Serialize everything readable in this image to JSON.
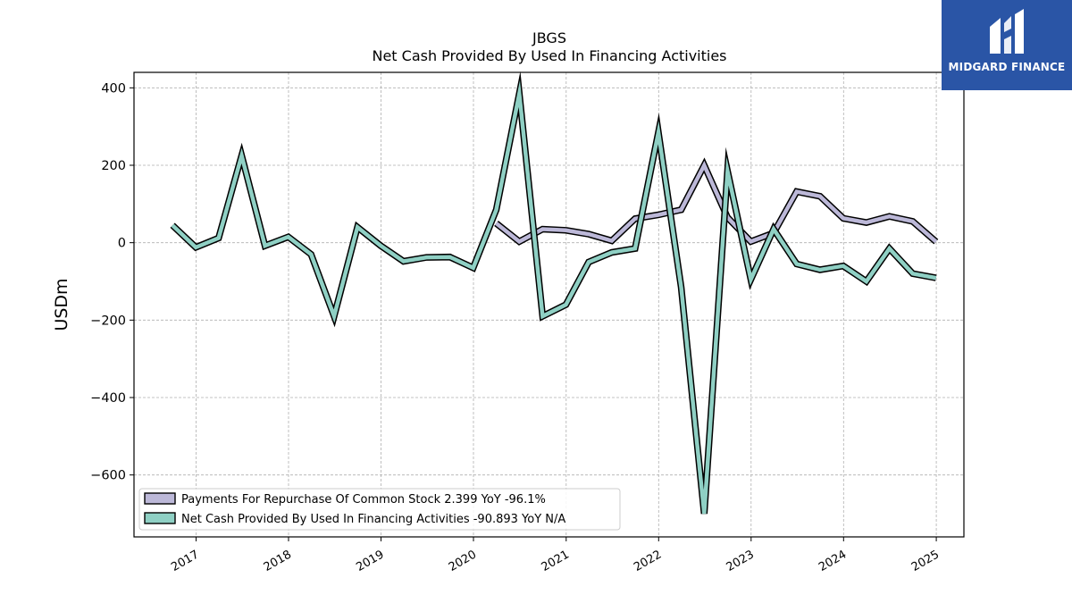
{
  "logo": {
    "text": "MIDGARD FINANCE",
    "color": "#2a55a6"
  },
  "chart_data": {
    "type": "line",
    "title": "JBGS",
    "subtitle": "Net Cash Provided By Used In Financing Activities",
    "xlabel": "",
    "ylabel": "USDm",
    "ylim": [
      -760,
      440
    ],
    "yticks": [
      400,
      200,
      0,
      -200,
      -400,
      -600
    ],
    "ytick_labels": [
      "400",
      "200",
      "0",
      "−200",
      "−400",
      "−600"
    ],
    "xlim": [
      "2016-05-01",
      "2025-04-20"
    ],
    "xticks": [
      "2017-01-01",
      "2018-01-01",
      "2019-01-01",
      "2020-01-01",
      "2021-01-01",
      "2022-01-01",
      "2023-01-01",
      "2024-01-01",
      "2025-01-01"
    ],
    "xtick_labels": [
      "2017",
      "2018",
      "2019",
      "2020",
      "2021",
      "2022",
      "2023",
      "2024",
      "2025"
    ],
    "grid": true,
    "legend_position": "lower-left",
    "series": [
      {
        "name": "Payments For Repurchase Of Common Stock  2.399 YoY -96.1%",
        "color": "#bcb8d8",
        "x": [
          "2020-03-31",
          "2020-06-30",
          "2020-09-30",
          "2020-12-31",
          "2021-03-31",
          "2021-06-30",
          "2021-09-30",
          "2021-12-31",
          "2022-03-31",
          "2022-06-30",
          "2022-09-30",
          "2022-12-31",
          "2023-03-31",
          "2023-06-30",
          "2023-09-30",
          "2023-12-31",
          "2024-03-31",
          "2024-06-30",
          "2024-09-30",
          "2024-12-31"
        ],
        "values": [
          50,
          3,
          35,
          32,
          22,
          5,
          62,
          72,
          85,
          200,
          65,
          3,
          25,
          132,
          120,
          63,
          52,
          68,
          55,
          2.4
        ]
      },
      {
        "name": "Net Cash Provided By Used In Financing Activities  -90.893 YoY N/A",
        "color": "#8fd0c4",
        "x": [
          "2016-09-30",
          "2016-12-31",
          "2017-03-31",
          "2017-06-30",
          "2017-09-30",
          "2017-12-31",
          "2018-03-31",
          "2018-06-30",
          "2018-09-30",
          "2018-12-31",
          "2019-03-31",
          "2019-06-30",
          "2019-09-30",
          "2019-12-31",
          "2020-03-31",
          "2020-06-30",
          "2020-09-30",
          "2020-12-31",
          "2021-03-31",
          "2021-06-30",
          "2021-09-30",
          "2021-12-31",
          "2022-03-31",
          "2022-06-30",
          "2022-09-30",
          "2022-12-31",
          "2023-03-31",
          "2023-06-30",
          "2023-09-30",
          "2023-12-31",
          "2024-03-31",
          "2024-06-30",
          "2024-09-30",
          "2024-12-31"
        ],
        "values": [
          45,
          -12,
          12,
          225,
          -8,
          15,
          -30,
          -190,
          40,
          -8,
          -48,
          -38,
          -37,
          -65,
          85,
          385,
          -190,
          -160,
          -50,
          -25,
          -15,
          285,
          -115,
          -700,
          185,
          -95,
          35,
          -55,
          -70,
          -60,
          -100,
          -15,
          -80,
          -90.9
        ]
      }
    ]
  }
}
